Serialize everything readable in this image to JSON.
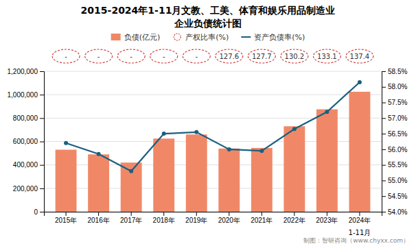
{
  "chart_data": {
    "type": "bar",
    "title": "2015-2024年1-11月文教、工美、体育和娱乐用品制造业",
    "subtitle": "企业负债统计图",
    "categories": [
      "2015年",
      "2016年",
      "2017年",
      "2018年",
      "2019年",
      "2020年",
      "2021年",
      "2022年",
      "2023年",
      "2024年"
    ],
    "series": [
      {
        "name": "负债(亿元)",
        "type": "bar",
        "color": "#F08868",
        "values": [
          530000,
          490000,
          420000,
          625000,
          660000,
          540000,
          545000,
          730000,
          875000,
          1025000
        ]
      },
      {
        "name": "产权比率(%)",
        "type": "label",
        "color": "#D94040",
        "values": [
          null,
          null,
          null,
          null,
          null,
          127.6,
          127.7,
          130.2,
          133.1,
          137.4
        ],
        "value_labels": [
          "-",
          "-",
          "-",
          "-",
          "-",
          "127.6",
          "127.7",
          "130.2",
          "133.1",
          "137.4"
        ]
      },
      {
        "name": "资产负债率(%)",
        "type": "line",
        "axis": "y2",
        "color": "#1A6080",
        "marker": "circle",
        "values": [
          56.2,
          55.85,
          55.3,
          56.5,
          56.55,
          56.0,
          55.95,
          56.65,
          57.2,
          58.15
        ]
      }
    ],
    "ylim": [
      0,
      1200000
    ],
    "yticks": [
      0,
      {
        "value": 200000,
        "label": "200,000"
      },
      {
        "value": 400000,
        "label": "400,000"
      },
      {
        "value": 600000,
        "label": "600,000"
      },
      {
        "value": 800000,
        "label": "800,000"
      },
      {
        "value": 1000000,
        "label": "1,000,000"
      },
      {
        "value": 1200000,
        "label": "1,200,000"
      }
    ],
    "y2lim": [
      54.0,
      58.5
    ],
    "y2ticks": [
      {
        "value": 54.0,
        "label": "54.0%"
      },
      {
        "value": 54.5,
        "label": "54.5%"
      },
      {
        "value": 55.0,
        "label": "55.0%"
      },
      {
        "value": 55.5,
        "label": "55.5%"
      },
      {
        "value": 56.0,
        "label": "56.0%"
      },
      {
        "value": 56.5,
        "label": "56.5%"
      },
      {
        "value": 57.0,
        "label": "57.0%"
      },
      {
        "value": 57.5,
        "label": "57.5%"
      },
      {
        "value": 58.0,
        "label": "58.0%"
      },
      {
        "value": 58.5,
        "label": "58.5%"
      }
    ],
    "grid": true,
    "legend": "top",
    "annotations": [
      {
        "text": "1-11月",
        "x": "2024年"
      },
      {
        "text": "制图：智研咨询（www.chyxx.com）"
      }
    ]
  }
}
